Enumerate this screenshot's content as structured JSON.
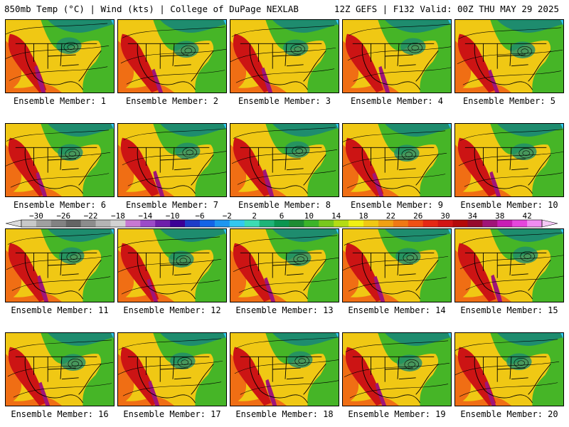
{
  "header": {
    "left": "850mb Temp (°C) | Wind (kts) | College of DuPage NEXLAB",
    "right": "12Z GEFS | F132 Valid: 00Z THU MAY 29 2025"
  },
  "panels": [
    {
      "label": "Ensemble Member: 1"
    },
    {
      "label": "Ensemble Member: 2"
    },
    {
      "label": "Ensemble Member: 3"
    },
    {
      "label": "Ensemble Member: 4"
    },
    {
      "label": "Ensemble Member: 5"
    },
    {
      "label": "Ensemble Member: 6"
    },
    {
      "label": "Ensemble Member: 7"
    },
    {
      "label": "Ensemble Member: 8"
    },
    {
      "label": "Ensemble Member: 9"
    },
    {
      "label": "Ensemble Member: 10"
    },
    {
      "label": "Ensemble Member: 11"
    },
    {
      "label": "Ensemble Member: 12"
    },
    {
      "label": "Ensemble Member: 13"
    },
    {
      "label": "Ensemble Member: 14"
    },
    {
      "label": "Ensemble Member: 15"
    },
    {
      "label": "Ensemble Member: 16"
    },
    {
      "label": "Ensemble Member: 17"
    },
    {
      "label": "Ensemble Member: 18"
    },
    {
      "label": "Ensemble Member: 19"
    },
    {
      "label": "Ensemble Member: 20"
    }
  ],
  "colorbar": {
    "labels": [
      "−30",
      "−26",
      "−22",
      "−18",
      "−14",
      "−10",
      "−6",
      "−2",
      "2",
      "6",
      "10",
      "14",
      "18",
      "22",
      "26",
      "30",
      "34",
      "38",
      "42"
    ],
    "colors": [
      "#dcdcdc",
      "#c8c8c8",
      "#a0a0a0",
      "#828282",
      "#646464",
      "#8c8c8c",
      "#b4b4b4",
      "#d2d2d2",
      "#c878d2",
      "#9b4bc8",
      "#6e1eaa",
      "#3c0096",
      "#1e3cc8",
      "#1464e6",
      "#1e96f0",
      "#32c8f0",
      "#3cdcb4",
      "#1eb478",
      "#0a9650",
      "#1e8c32",
      "#3cb428",
      "#78c81e",
      "#b4dc14",
      "#f0f014",
      "#f0c814",
      "#f0a014",
      "#f07814",
      "#f05014",
      "#e62814",
      "#d21414",
      "#b40a0a",
      "#960a2d",
      "#a01478",
      "#c81eb4",
      "#e646dc",
      "#f08cf0",
      "#f5c8f5"
    ]
  },
  "colors": {
    "hot": "#cc1414",
    "warm": "#f06e14",
    "mild": "#f0c814",
    "cool": "#3cb428",
    "cold": "#1e8c6e",
    "coldest": "#32c8f0",
    "extreme": "#a01478"
  }
}
